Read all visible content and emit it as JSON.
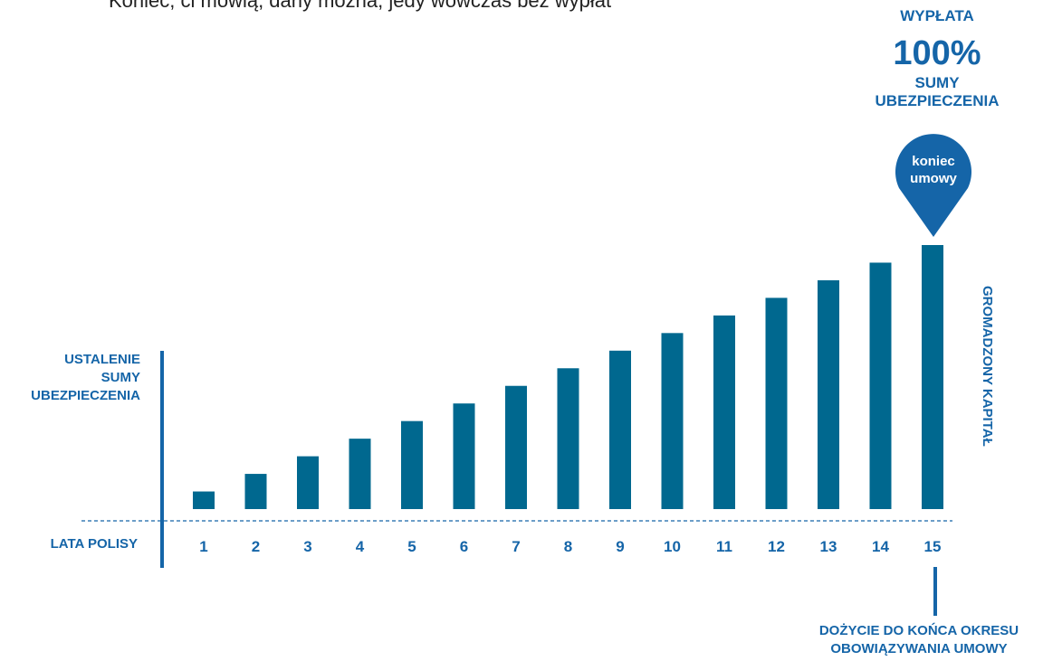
{
  "top_text": "Koniec, ci mówią, dany można, jedy wówczas bez wypłat",
  "payout": {
    "line1": "WYPŁATA",
    "percent": "100%",
    "line2": "SUMY",
    "line3": "UBEZPIECZENIA"
  },
  "pin": {
    "line1": "koniec",
    "line2": "umowy"
  },
  "left_label": {
    "line1": "USTALENIE",
    "line2": "SUMY",
    "line3": "UBEZPIECZENIA"
  },
  "axis_label": "LATA POLISY",
  "side_label": "GROMADZONY KAPITAŁ",
  "bottom_label": {
    "line1": "DOŻYCIE DO KOŃCA OKRESU",
    "line2": "OBOWIĄZYWANIA UMOWY"
  },
  "colors": {
    "bar": "#00688f",
    "text": "#1565a8",
    "pin": "#1565a8"
  },
  "chart_data": {
    "type": "bar",
    "categories": [
      "1",
      "2",
      "3",
      "4",
      "5",
      "6",
      "7",
      "8",
      "9",
      "10",
      "11",
      "12",
      "13",
      "14",
      "15"
    ],
    "values": [
      1,
      2,
      3,
      4,
      5,
      6,
      7,
      8,
      9,
      10,
      11,
      12,
      13,
      14,
      15
    ],
    "xlabel": "LATA POLISY",
    "ylabel": "GROMADZONY KAPITAŁ",
    "ylim": [
      0,
      15
    ],
    "grid": false,
    "legend": "none"
  }
}
